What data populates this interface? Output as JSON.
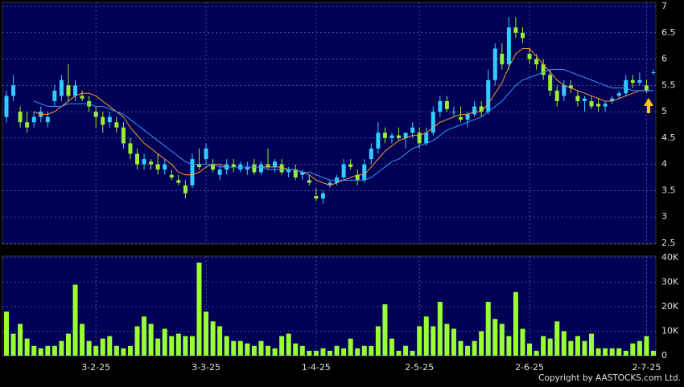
{
  "chart_data": {
    "type": "candlestick",
    "categories": [
      null,
      null,
      null,
      null,
      null,
      null,
      null,
      null,
      null,
      null,
      null,
      null,
      null,
      "3-2-25",
      null,
      null,
      null,
      null,
      null,
      null,
      null,
      null,
      null,
      null,
      null,
      null,
      null,
      null,
      null,
      "3-3-25",
      null,
      null,
      null,
      null,
      null,
      null,
      null,
      null,
      null,
      null,
      null,
      null,
      null,
      null,
      null,
      "1-4-25",
      null,
      null,
      null,
      null,
      null,
      null,
      null,
      null,
      null,
      null,
      null,
      null,
      null,
      null,
      "2-5-25",
      null,
      null,
      null,
      null,
      null,
      null,
      null,
      null,
      null,
      null,
      null,
      null,
      null,
      null,
      null,
      "2-6-25",
      null,
      null,
      null,
      null,
      null,
      null,
      null,
      null,
      null,
      null,
      null,
      null,
      null,
      null,
      null,
      null,
      "2-7-25",
      null
    ],
    "candles": [
      [
        4.9,
        5.4,
        4.8,
        5.3
      ],
      [
        5.3,
        5.7,
        5.2,
        5.5
      ],
      [
        5.0,
        5.1,
        4.7,
        4.8
      ],
      [
        4.8,
        5.0,
        4.6,
        4.7
      ],
      [
        4.8,
        5.0,
        4.7,
        4.9
      ],
      [
        4.9,
        5.1,
        4.8,
        5.0
      ],
      [
        4.8,
        5.0,
        4.7,
        4.9
      ],
      [
        5.2,
        5.5,
        5.1,
        5.4
      ],
      [
        5.3,
        5.7,
        5.2,
        5.6
      ],
      [
        5.5,
        5.9,
        5.2,
        5.3
      ],
      [
        5.3,
        5.6,
        5.2,
        5.5
      ],
      [
        5.3,
        5.4,
        5.2,
        5.25
      ],
      [
        5.2,
        5.3,
        5.0,
        5.1
      ],
      [
        5.0,
        5.1,
        4.7,
        4.9
      ],
      [
        4.9,
        5.0,
        4.6,
        4.75
      ],
      [
        4.8,
        5.0,
        4.7,
        4.9
      ],
      [
        4.8,
        4.9,
        4.6,
        4.7
      ],
      [
        4.7,
        4.8,
        4.3,
        4.4
      ],
      [
        4.4,
        4.5,
        4.1,
        4.2
      ],
      [
        4.2,
        4.3,
        3.9,
        4.0
      ],
      [
        4.0,
        4.2,
        3.9,
        4.1
      ],
      [
        4.05,
        4.1,
        3.9,
        4.0
      ],
      [
        4.0,
        4.2,
        3.8,
        3.9
      ],
      [
        3.9,
        4.1,
        3.8,
        4.0
      ],
      [
        3.8,
        3.9,
        3.7,
        3.75
      ],
      [
        3.7,
        3.8,
        3.6,
        3.65
      ],
      [
        3.6,
        3.7,
        3.35,
        3.45
      ],
      [
        3.6,
        4.2,
        3.55,
        4.1
      ],
      [
        4.0,
        4.3,
        3.9,
        3.95
      ],
      [
        4.1,
        4.4,
        4.0,
        4.3
      ],
      [
        4.0,
        4.1,
        3.85,
        3.9
      ],
      [
        3.8,
        4.0,
        3.7,
        3.9
      ],
      [
        3.9,
        4.1,
        3.8,
        4.0
      ],
      [
        4.0,
        4.1,
        3.85,
        3.95
      ],
      [
        3.9,
        4.05,
        3.85,
        4.0
      ],
      [
        3.9,
        4.05,
        3.8,
        3.95
      ],
      [
        4.0,
        4.1,
        3.8,
        3.85
      ],
      [
        3.85,
        4.05,
        3.8,
        4.0
      ],
      [
        4.0,
        4.3,
        3.9,
        3.95
      ],
      [
        3.95,
        4.1,
        3.85,
        4.05
      ],
      [
        4.0,
        4.1,
        3.8,
        3.85
      ],
      [
        3.85,
        3.95,
        3.75,
        3.9
      ],
      [
        3.9,
        4.0,
        3.7,
        3.75
      ],
      [
        3.8,
        3.9,
        3.7,
        3.85
      ],
      [
        3.7,
        3.8,
        3.6,
        3.65
      ],
      [
        3.4,
        3.55,
        3.3,
        3.35
      ],
      [
        3.35,
        3.5,
        3.25,
        3.45
      ],
      [
        3.6,
        3.7,
        3.55,
        3.65
      ],
      [
        3.65,
        3.8,
        3.6,
        3.75
      ],
      [
        3.75,
        4.1,
        3.7,
        4.0
      ],
      [
        4.0,
        4.1,
        3.9,
        3.95
      ],
      [
        3.8,
        3.9,
        3.6,
        3.7
      ],
      [
        3.7,
        4.1,
        3.65,
        4.0
      ],
      [
        4.1,
        4.4,
        4.0,
        4.3
      ],
      [
        4.3,
        4.8,
        4.2,
        4.6
      ],
      [
        4.6,
        4.7,
        4.4,
        4.5
      ],
      [
        4.5,
        4.6,
        4.4,
        4.55
      ],
      [
        4.55,
        4.7,
        4.45,
        4.5
      ],
      [
        4.5,
        4.6,
        4.3,
        4.6
      ],
      [
        4.6,
        4.8,
        4.5,
        4.7
      ],
      [
        4.6,
        4.7,
        4.3,
        4.4
      ],
      [
        4.4,
        4.7,
        4.35,
        4.6
      ],
      [
        4.6,
        5.1,
        4.55,
        5.0
      ],
      [
        5.0,
        5.3,
        4.9,
        5.2
      ],
      [
        5.2,
        5.3,
        5.0,
        5.05
      ],
      [
        5.0,
        5.1,
        4.9,
        5.0
      ],
      [
        4.9,
        5.1,
        4.8,
        4.85
      ],
      [
        4.85,
        5.0,
        4.7,
        4.95
      ],
      [
        4.95,
        5.2,
        4.9,
        5.1
      ],
      [
        5.1,
        5.2,
        4.9,
        5.0
      ],
      [
        5.0,
        5.8,
        4.95,
        5.6
      ],
      [
        5.6,
        6.3,
        5.5,
        6.2
      ],
      [
        6.1,
        6.3,
        5.8,
        5.9
      ],
      [
        5.9,
        6.8,
        5.8,
        6.6
      ],
      [
        6.6,
        6.8,
        6.4,
        6.5
      ],
      [
        6.5,
        6.6,
        6.3,
        6.4
      ],
      [
        6.1,
        6.2,
        5.9,
        6.0
      ],
      [
        6.0,
        6.1,
        5.8,
        5.9
      ],
      [
        5.9,
        6.0,
        5.6,
        5.7
      ],
      [
        5.7,
        5.8,
        5.3,
        5.4
      ],
      [
        5.4,
        5.5,
        5.1,
        5.2
      ],
      [
        5.3,
        5.6,
        5.2,
        5.5
      ],
      [
        5.5,
        5.6,
        5.35,
        5.45
      ],
      [
        5.3,
        5.4,
        5.1,
        5.2
      ],
      [
        5.2,
        5.3,
        5.0,
        5.25
      ],
      [
        5.2,
        5.3,
        5.05,
        5.1
      ],
      [
        5.15,
        5.25,
        5.0,
        5.1
      ],
      [
        5.1,
        5.2,
        5.0,
        5.15
      ],
      [
        5.2,
        5.3,
        5.15,
        5.25
      ],
      [
        5.3,
        5.4,
        5.25,
        5.35
      ],
      [
        5.35,
        5.7,
        5.3,
        5.6
      ],
      [
        5.6,
        5.7,
        5.45,
        5.55
      ],
      [
        5.55,
        5.75,
        5.5,
        5.6
      ],
      [
        5.5,
        5.6,
        5.35,
        5.4
      ],
      [
        5.75,
        5.8,
        5.7,
        5.75
      ]
    ],
    "up_color": "#33ccff",
    "down_color": "#99ee33",
    "ylim": [
      2.5,
      7
    ],
    "yticks": [
      2.5,
      3,
      3.5,
      4,
      4.5,
      5,
      5.5,
      6,
      6.5,
      7
    ],
    "grid": true,
    "moving_averages": [
      {
        "color": "#ff9933",
        "values": [
          null,
          null,
          null,
          null,
          5.0,
          4.95,
          4.95,
          5.0,
          5.1,
          5.2,
          5.3,
          5.35,
          5.35,
          5.3,
          5.2,
          5.1,
          5.0,
          4.9,
          4.7,
          4.55,
          4.4,
          4.3,
          4.2,
          4.1,
          4.0,
          3.85,
          3.8,
          3.8,
          3.85,
          3.95,
          4.0,
          4.0,
          3.95,
          3.95,
          3.95,
          3.95,
          3.95,
          3.95,
          3.95,
          3.95,
          3.95,
          3.9,
          3.9,
          3.85,
          3.8,
          3.7,
          3.65,
          3.6,
          3.65,
          3.7,
          3.75,
          3.8,
          3.8,
          3.95,
          4.1,
          4.25,
          4.35,
          4.45,
          4.5,
          4.55,
          4.55,
          4.6,
          4.7,
          4.8,
          4.85,
          4.9,
          4.95,
          4.95,
          5.0,
          5.0,
          5.15,
          5.35,
          5.55,
          5.85,
          6.1,
          6.2,
          6.2,
          6.05,
          5.9,
          5.75,
          5.6,
          5.5,
          5.45,
          5.4,
          5.35,
          5.3,
          5.25,
          5.2,
          5.2,
          5.25,
          5.3,
          5.35,
          5.4,
          5.4,
          5.4
        ]
      },
      {
        "color": "#3399ff",
        "values": [
          null,
          null,
          null,
          null,
          5.2,
          5.15,
          5.1,
          5.1,
          5.1,
          5.15,
          5.15,
          5.15,
          5.15,
          5.1,
          5.1,
          5.05,
          5.0,
          4.95,
          4.85,
          4.75,
          4.65,
          4.55,
          4.45,
          4.35,
          4.25,
          4.15,
          4.05,
          4.0,
          4.0,
          4.0,
          4.0,
          3.95,
          3.95,
          3.95,
          3.95,
          3.95,
          3.95,
          3.95,
          3.9,
          3.9,
          3.9,
          3.9,
          3.9,
          3.85,
          3.85,
          3.8,
          3.75,
          3.7,
          3.7,
          3.7,
          3.7,
          3.7,
          3.7,
          3.75,
          3.85,
          3.95,
          4.05,
          4.1,
          4.2,
          4.3,
          4.35,
          4.4,
          4.45,
          4.55,
          4.65,
          4.7,
          4.75,
          4.8,
          4.85,
          4.9,
          5.0,
          5.1,
          5.2,
          5.35,
          5.5,
          5.6,
          5.65,
          5.7,
          5.75,
          5.8,
          5.8,
          5.8,
          5.75,
          5.7,
          5.65,
          5.6,
          5.55,
          5.5,
          5.45,
          5.45,
          5.45,
          5.4,
          5.4,
          5.4,
          5.4
        ]
      }
    ],
    "volume": {
      "color": "#99ff33",
      "values": [
        18000,
        9000,
        13000,
        7000,
        4000,
        3000,
        4000,
        4000,
        6000,
        9000,
        29000,
        13000,
        6000,
        4000,
        7000,
        8000,
        4000,
        3000,
        4000,
        12000,
        16000,
        13000,
        7000,
        11000,
        8000,
        9000,
        8000,
        8000,
        38000,
        18000,
        14000,
        12000,
        8000,
        6000,
        6000,
        5000,
        4000,
        6000,
        4000,
        3000,
        8000,
        9000,
        5000,
        4000,
        2000,
        2000,
        3000,
        2000,
        4000,
        3000,
        7000,
        3000,
        4000,
        4000,
        12000,
        21000,
        7000,
        2000,
        4000,
        2000,
        12000,
        16000,
        12000,
        22000,
        13000,
        11000,
        6000,
        4000,
        6000,
        10000,
        22000,
        15000,
        13000,
        8000,
        26000,
        11000,
        5000,
        2000,
        8000,
        7000,
        14000,
        10000,
        6000,
        8000,
        6000,
        9000,
        3000,
        3000,
        3000,
        3000,
        2000,
        5000,
        6000,
        8000,
        2000
      ],
      "ylim": [
        0,
        40000
      ],
      "yticks": [
        0,
        {
          "value": 10000,
          "label": "10K"
        },
        {
          "value": 20000,
          "label": "20K"
        },
        {
          "value": 30000,
          "label": "30K"
        },
        {
          "value": 40000,
          "label": "40K"
        }
      ]
    }
  },
  "copyright": "Copyright by AASTOCKS.com Ltd."
}
